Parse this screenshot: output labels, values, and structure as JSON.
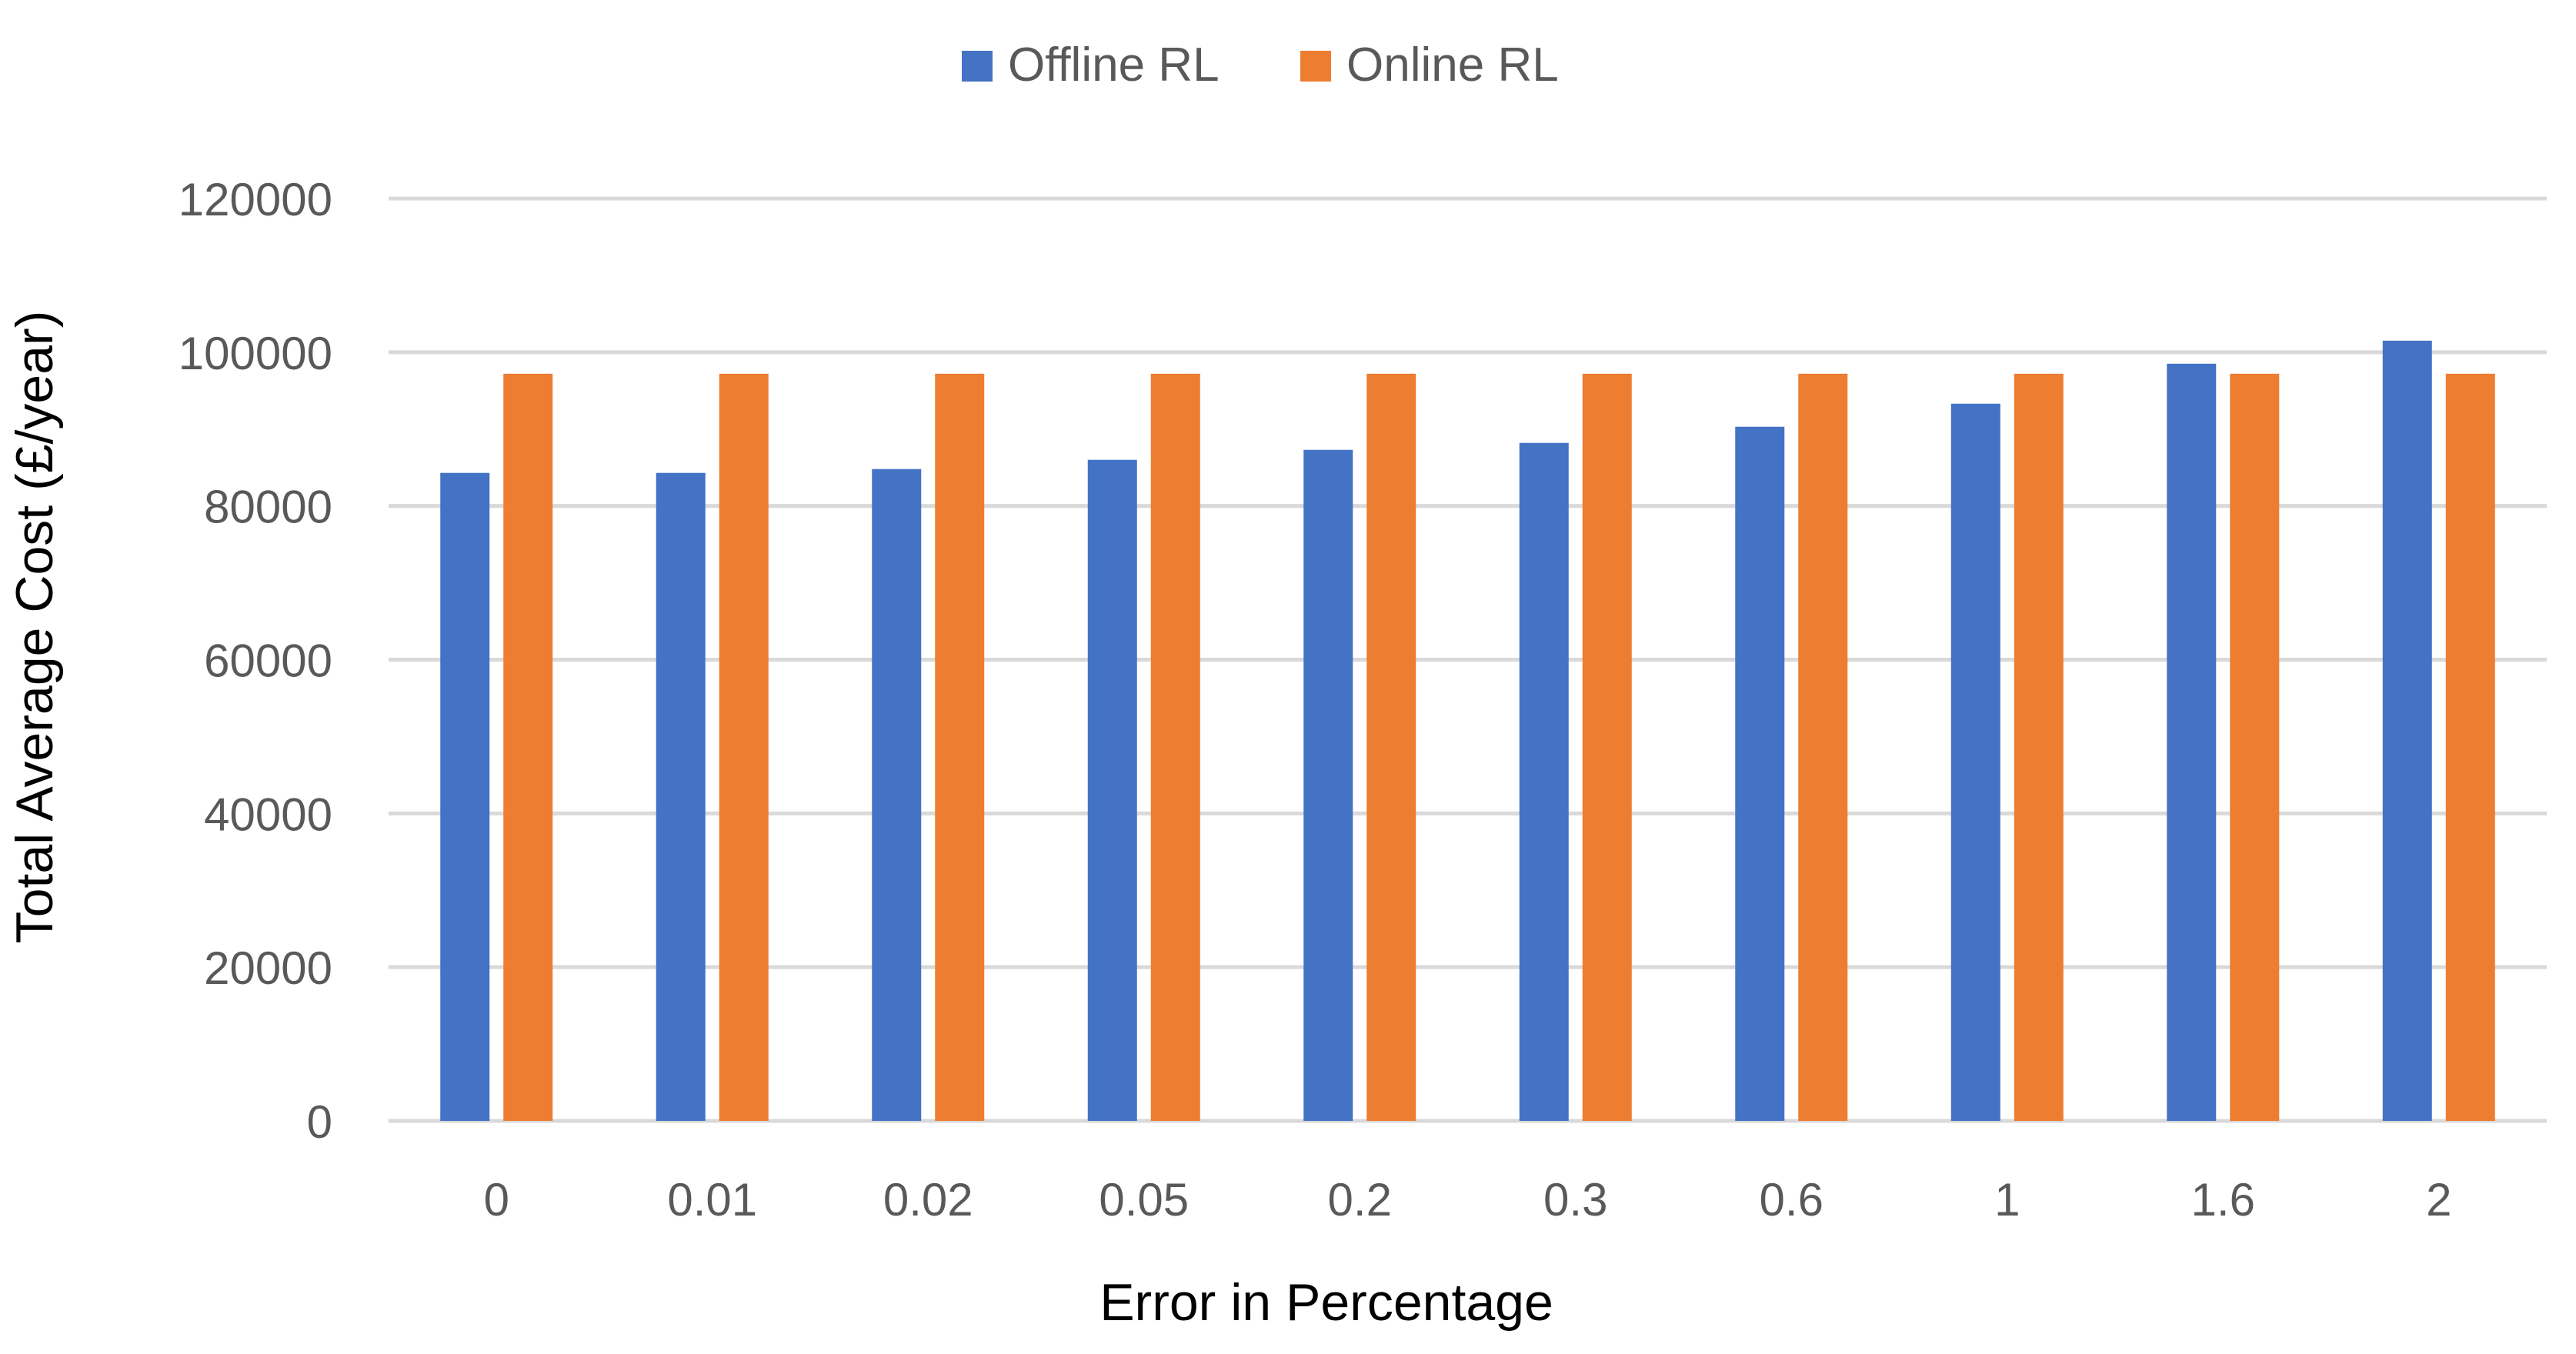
{
  "chart_data": {
    "type": "bar",
    "title": "",
    "xlabel": "Error in Percentage",
    "ylabel": "Total Average Cost (£/year)",
    "categories": [
      "0",
      "0.01",
      "0.02",
      "0.05",
      "0.2",
      "0.3",
      "0.6",
      "1",
      "1.6",
      "2"
    ],
    "series": [
      {
        "name": "Offline RL",
        "color": "#4472C4",
        "values": [
          84300,
          84300,
          84800,
          86000,
          87300,
          88200,
          90300,
          93300,
          98500,
          101500
        ]
      },
      {
        "name": "Online RL",
        "color": "#ED7D31",
        "values": [
          97200,
          97200,
          97200,
          97200,
          97200,
          97200,
          97200,
          97200,
          97200,
          97200
        ]
      }
    ],
    "ylim": [
      0,
      120000
    ],
    "yticks": [
      "0",
      "20000",
      "40000",
      "60000",
      "80000",
      "100000",
      "120000"
    ],
    "grid": true,
    "legend_position": "top-center",
    "grid_color": "#D9D9D9",
    "text_color": "#595959"
  }
}
